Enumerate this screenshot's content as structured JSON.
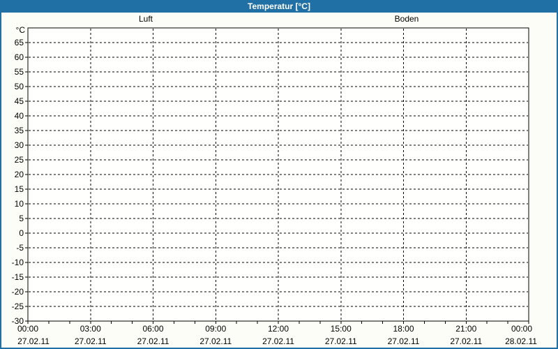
{
  "window": {
    "title": "Temperatur [°C]"
  },
  "colors": {
    "frame": "#2170a5",
    "titlebar_bg": "#2170a5",
    "title_text": "#ffffff",
    "page_bg": "#fdfdf8",
    "plot_bg": "#fffffe",
    "axis": "#000000",
    "grid": "#000000",
    "tick_text": "#000000"
  },
  "legend": {
    "items": [
      {
        "label": "Luft",
        "color": "#2d2dbe"
      },
      {
        "label": "Boden",
        "color": "#bf7d35"
      }
    ]
  },
  "chart_data": {
    "type": "line",
    "title": "Temperatur [°C]",
    "xlabel": "",
    "ylabel": "°C",
    "ylim": [
      -30,
      70
    ],
    "y_tick_step": 5,
    "y_ticks": [
      65,
      60,
      55,
      50,
      45,
      40,
      35,
      30,
      25,
      20,
      15,
      10,
      5,
      0,
      -5,
      -10,
      -15,
      -20,
      -25,
      -30
    ],
    "x_axis": {
      "range_hours": [
        0,
        24
      ],
      "minor_tick_hours": 1,
      "major_ticks": [
        {
          "hour": 0,
          "time": "00:00",
          "date": "27.02.11"
        },
        {
          "hour": 3,
          "time": "03:00",
          "date": "27.02.11"
        },
        {
          "hour": 6,
          "time": "06:00",
          "date": "27.02.11"
        },
        {
          "hour": 9,
          "time": "09:00",
          "date": "27.02.11"
        },
        {
          "hour": 12,
          "time": "12:00",
          "date": "27.02.11"
        },
        {
          "hour": 15,
          "time": "15:00",
          "date": "27.02.11"
        },
        {
          "hour": 18,
          "time": "18:00",
          "date": "27.02.11"
        },
        {
          "hour": 21,
          "time": "21:00",
          "date": "27.02.11"
        },
        {
          "hour": 24,
          "time": "00:00",
          "date": "28.02.11"
        }
      ]
    },
    "grid": "dashed",
    "legend_position": "top",
    "series": [
      {
        "name": "Luft",
        "color": "#2d2dbe",
        "points": []
      },
      {
        "name": "Boden",
        "color": "#bf7d35",
        "points": []
      }
    ]
  }
}
